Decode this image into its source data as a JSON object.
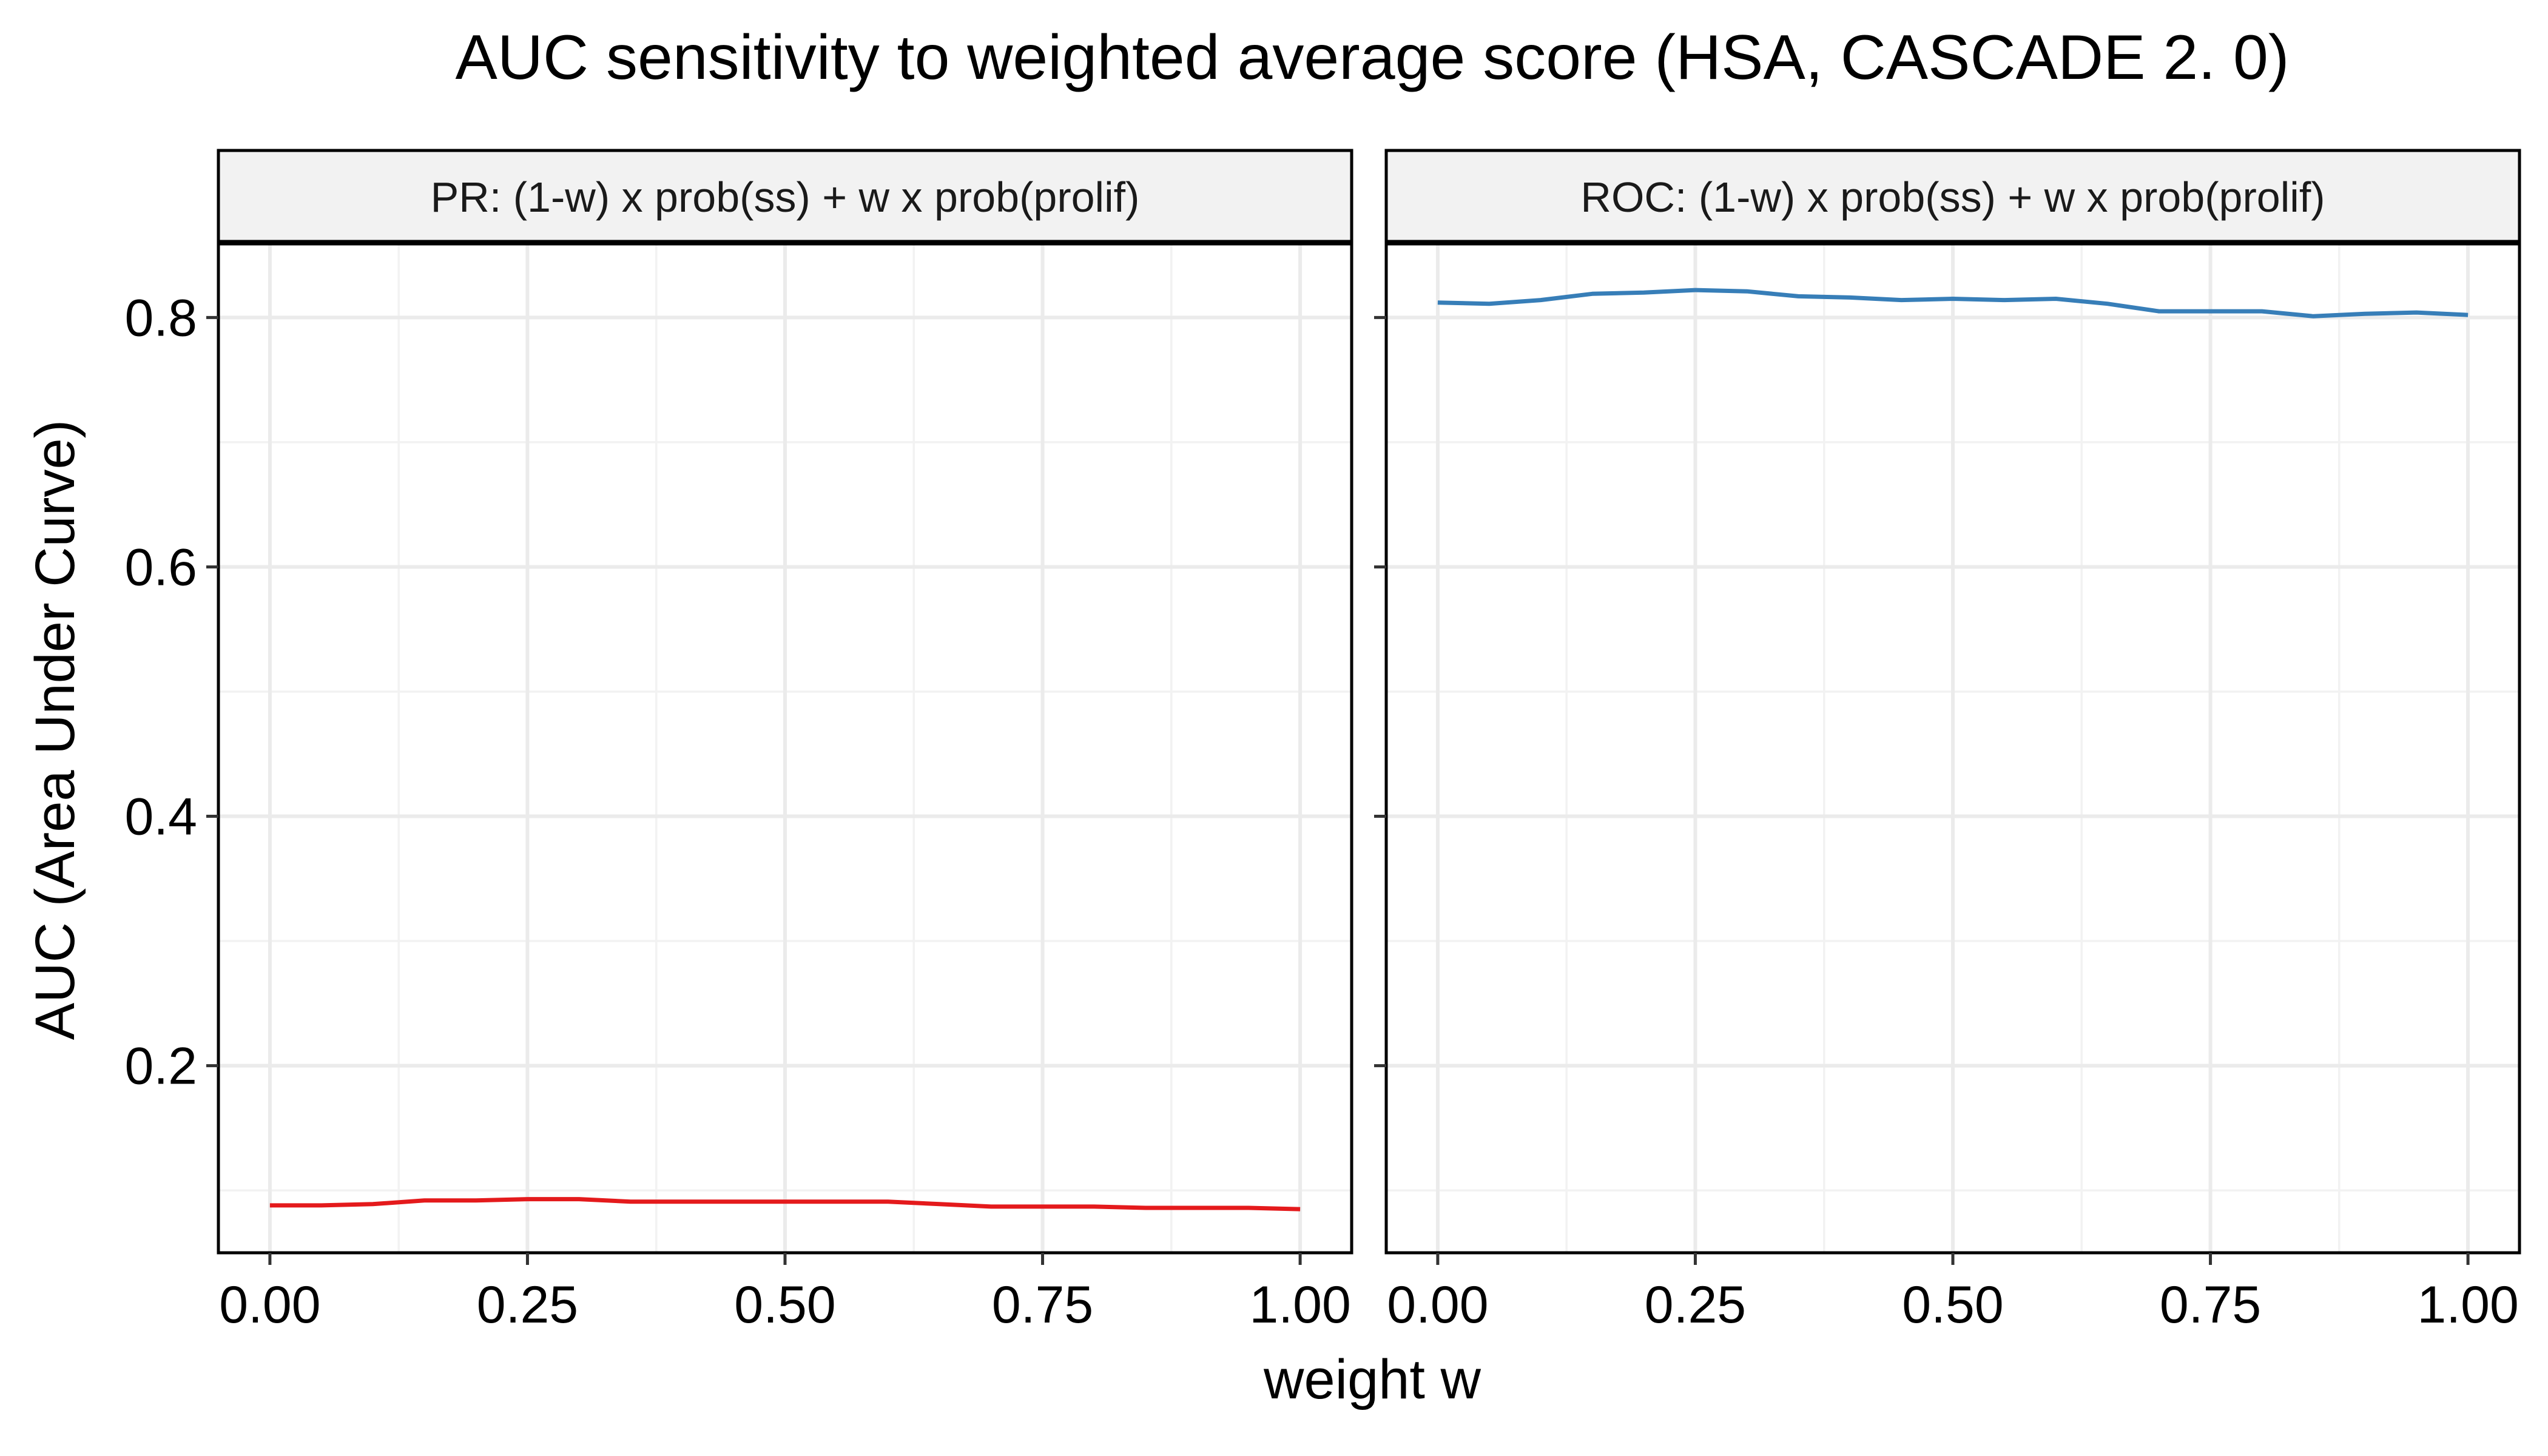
{
  "chart_data": {
    "type": "line",
    "title": "AUC sensitivity to weighted average score (HSA, CASCADE 2. 0)",
    "xlabel": "weight w",
    "ylabel": "AUC (Area Under Curve)",
    "xlim": [
      -0.05,
      1.05
    ],
    "ylim": [
      0.05,
      0.86
    ],
    "x_ticks": [
      0.0,
      0.25,
      0.5,
      0.75,
      1.0
    ],
    "x_tick_labels": [
      "0.00",
      "0.25",
      "0.50",
      "0.75",
      "1.00"
    ],
    "y_ticks": [
      0.2,
      0.4,
      0.6,
      0.8
    ],
    "y_tick_labels": [
      "0.2",
      "0.4",
      "0.6",
      "0.8"
    ],
    "grid": true,
    "legend": "none",
    "x": [
      0.0,
      0.05,
      0.1,
      0.15,
      0.2,
      0.25,
      0.3,
      0.35,
      0.4,
      0.45,
      0.5,
      0.55,
      0.6,
      0.65,
      0.7,
      0.75,
      0.8,
      0.85,
      0.9,
      0.95,
      1.0
    ],
    "panels": [
      {
        "strip": "PR: (1-w) x prob(ss) + w x prob(prolif)",
        "color": "#e41a1c",
        "values": [
          0.088,
          0.088,
          0.089,
          0.092,
          0.092,
          0.093,
          0.093,
          0.091,
          0.091,
          0.091,
          0.091,
          0.091,
          0.091,
          0.089,
          0.087,
          0.087,
          0.087,
          0.086,
          0.086,
          0.086,
          0.085
        ]
      },
      {
        "strip": "ROC: (1-w) x prob(ss) + w x prob(prolif)",
        "color": "#377eb8",
        "values": [
          0.812,
          0.811,
          0.814,
          0.819,
          0.82,
          0.822,
          0.821,
          0.817,
          0.816,
          0.814,
          0.815,
          0.814,
          0.815,
          0.811,
          0.805,
          0.805,
          0.805,
          0.801,
          0.803,
          0.804,
          0.802
        ]
      }
    ]
  }
}
